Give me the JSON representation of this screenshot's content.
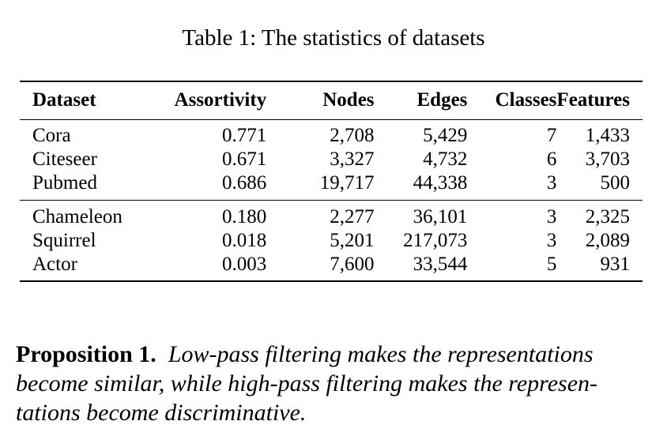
{
  "caption": "Table 1: The statistics of datasets",
  "table": {
    "headers": [
      "Dataset",
      "Assortivity",
      "Nodes",
      "Edges",
      "Classes",
      "Features"
    ],
    "groups": [
      [
        [
          "Cora",
          "0.771",
          "2,708",
          "5,429",
          "7",
          "1,433"
        ],
        [
          "Citeseer",
          "0.671",
          "3,327",
          "4,732",
          "6",
          "3,703"
        ],
        [
          "Pubmed",
          "0.686",
          "19,717",
          "44,338",
          "3",
          "500"
        ]
      ],
      [
        [
          "Chameleon",
          "0.180",
          "2,277",
          "36,101",
          "3",
          "2,325"
        ],
        [
          "Squirrel",
          "0.018",
          "5,201",
          "217,073",
          "3",
          "2,089"
        ],
        [
          "Actor",
          "0.003",
          "7,600",
          "33,544",
          "5",
          "931"
        ]
      ]
    ]
  },
  "proposition": {
    "label": "Proposition 1.",
    "line1": "Low-pass filtering makes the representations",
    "line2": "become similar, while high-pass filtering makes the represen-",
    "line3": "tations become discriminative."
  }
}
